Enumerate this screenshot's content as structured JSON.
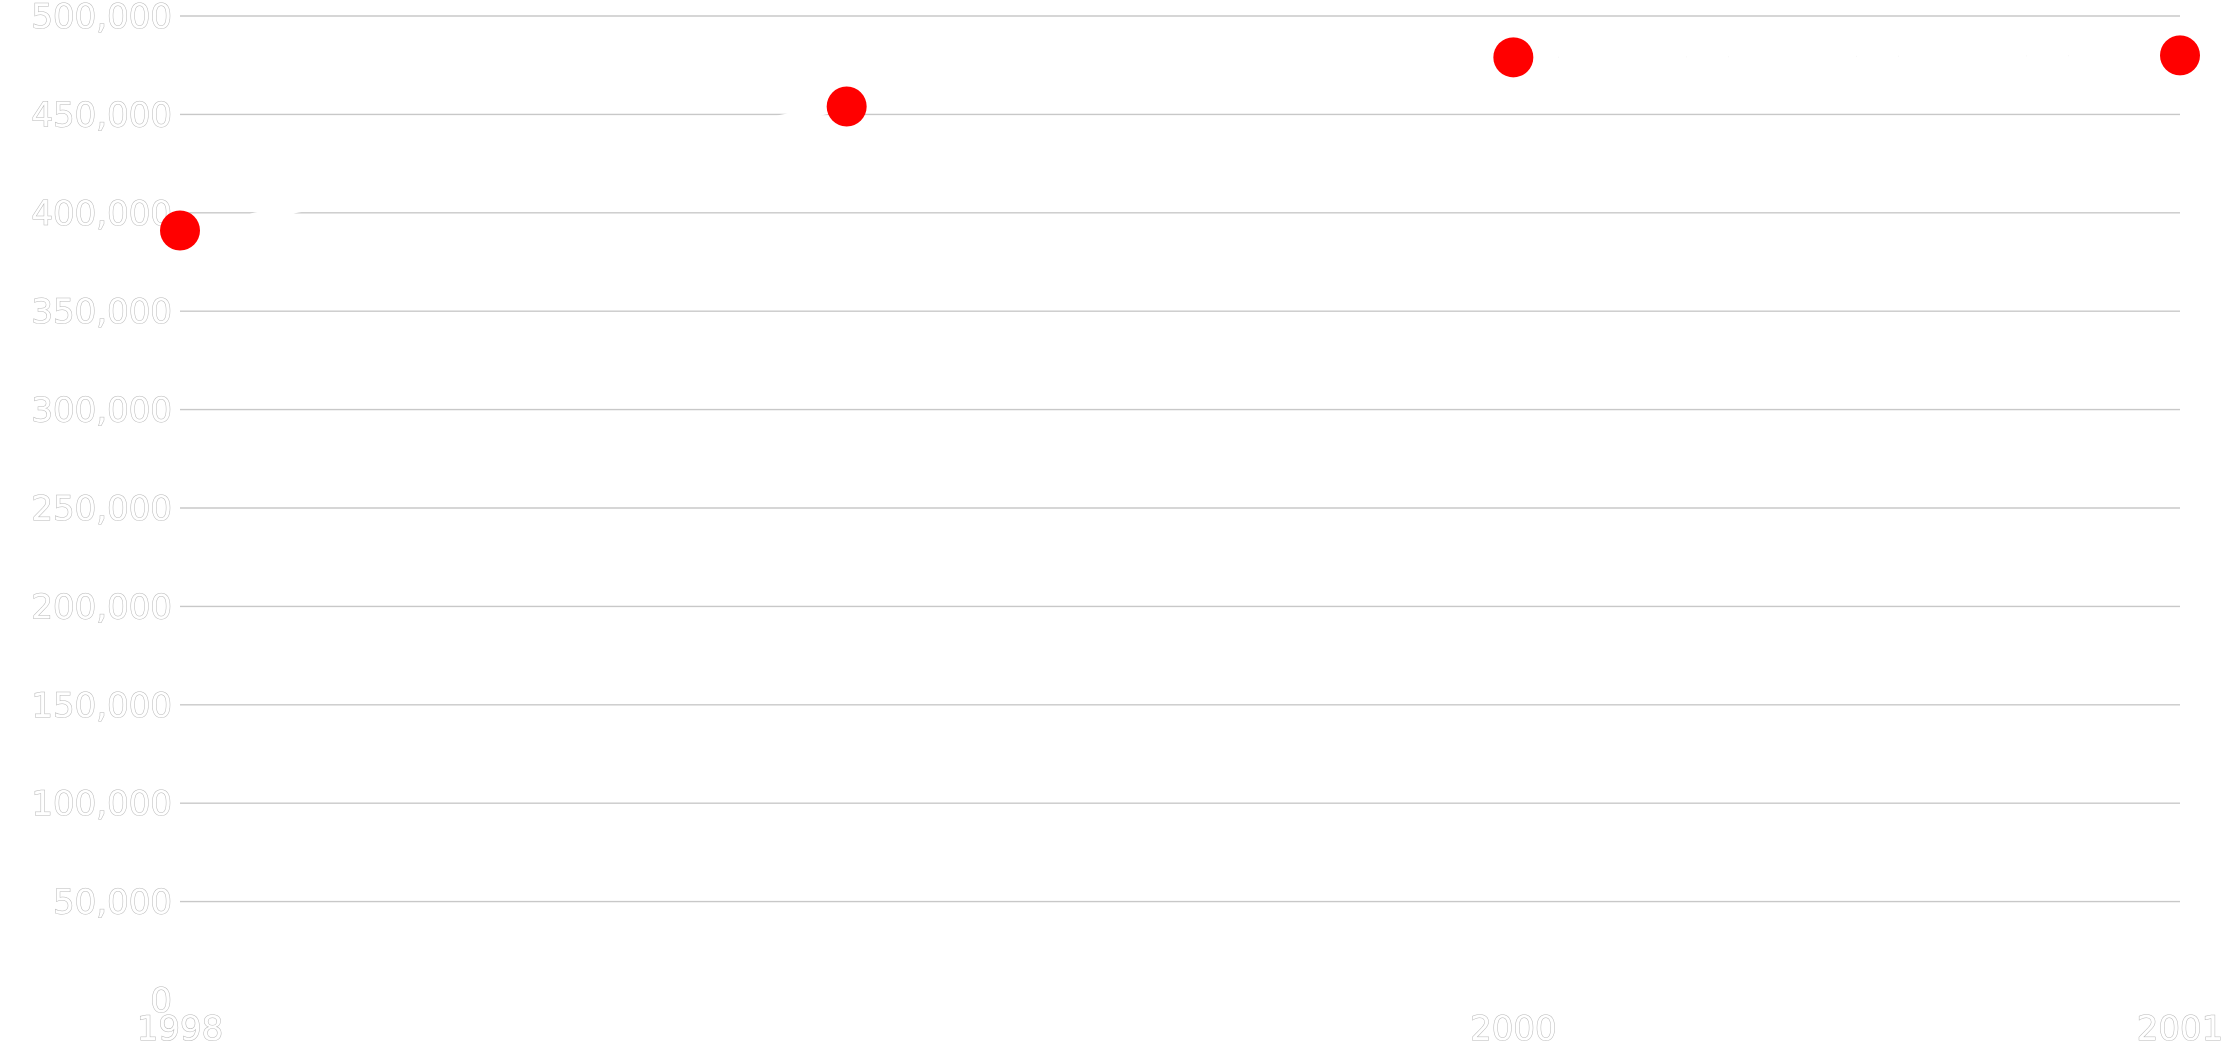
{
  "chart_data": {
    "type": "line",
    "title": "",
    "xlabel": "",
    "ylabel": "",
    "ylim": [
      0,
      500000
    ],
    "yticks": [
      0,
      50000,
      100000,
      150000,
      200000,
      250000,
      300000,
      350000,
      400000,
      450000,
      500000
    ],
    "ytick_labels": [
      "0",
      "50,000",
      "100,000",
      "150,000",
      "200,000",
      "250,000",
      "300,000",
      "350,000",
      "400,000",
      "450,000",
      "500,000"
    ],
    "xlim": [
      1998,
      2001
    ],
    "xticks": [
      1998,
      2000,
      2001
    ],
    "xtick_labels": [
      "1998",
      "2000",
      "2001"
    ],
    "grid": true,
    "series": [
      {
        "color": "#ff0000",
        "points": [
          {
            "x": 1998,
            "y": 391000
          },
          {
            "x": 1999,
            "y": 454000
          },
          {
            "x": 2000,
            "y": 479000
          },
          {
            "x": 2001,
            "y": 480000
          }
        ],
        "dashed_segments": [
          2
        ]
      }
    ]
  }
}
